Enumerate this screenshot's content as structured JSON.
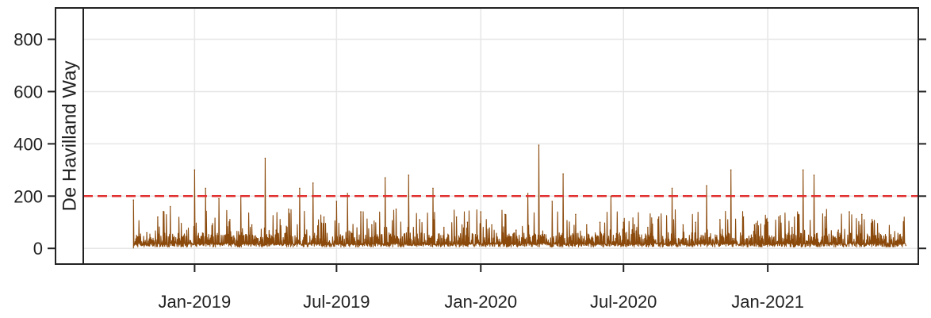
{
  "chart_data": {
    "type": "line",
    "title": "",
    "xlabel": "",
    "ylabel": "",
    "panel_label": "De Havilland Way",
    "ylim": [
      -60,
      920
    ],
    "y_ticks": [
      0,
      200,
      400,
      600,
      800
    ],
    "xlim": [
      "2018-08-12",
      "2021-07-12"
    ],
    "x_ticks": [
      {
        "date": "2019-01-01",
        "label": "Jan-2019"
      },
      {
        "date": "2019-07-01",
        "label": "Jul-2019"
      },
      {
        "date": "2020-01-01",
        "label": "Jan-2020"
      },
      {
        "date": "2020-07-01",
        "label": "Jul-2020"
      },
      {
        "date": "2021-01-01",
        "label": "Jan-2021"
      }
    ],
    "grid": true,
    "threshold": {
      "value": 200,
      "color": "#e03030",
      "style": "dashed"
    },
    "series": [
      {
        "color": "#8b4a0c",
        "x": [
          "2018-10-15",
          "2018-11-01",
          "2018-11-15",
          "2018-12-01",
          "2018-12-15",
          "2019-01-01",
          "2019-01-15",
          "2019-02-01",
          "2019-02-15",
          "2019-03-01",
          "2019-03-15",
          "2019-04-01",
          "2019-04-15",
          "2019-05-01",
          "2019-05-15",
          "2019-06-01",
          "2019-06-15",
          "2019-07-01",
          "2019-07-15",
          "2019-08-01",
          "2019-08-15",
          "2019-09-01",
          "2019-09-15",
          "2019-10-01",
          "2019-10-15",
          "2019-11-01",
          "2019-11-15",
          "2019-12-01",
          "2019-12-15",
          "2020-01-01",
          "2020-01-15",
          "2020-02-01",
          "2020-02-15",
          "2020-03-01",
          "2020-03-15",
          "2020-04-01",
          "2020-04-15",
          "2020-05-01",
          "2020-05-15",
          "2020-06-01",
          "2020-06-15",
          "2020-07-01",
          "2020-07-15",
          "2020-08-01",
          "2020-08-15",
          "2020-09-01",
          "2020-09-15",
          "2020-10-01",
          "2020-10-15",
          "2020-11-01",
          "2020-11-15",
          "2020-12-01",
          "2020-12-15",
          "2021-01-01",
          "2021-01-15",
          "2021-02-01",
          "2021-02-15",
          "2021-03-01",
          "2021-03-15",
          "2021-04-01",
          "2021-04-15",
          "2021-05-01"
        ],
        "y": [
          185,
          60,
          120,
          160,
          95,
          300,
          230,
          190,
          110,
          200,
          90,
          345,
          70,
          150,
          230,
          250,
          120,
          180,
          210,
          140,
          90,
          270,
          150,
          280,
          110,
          230,
          80,
          120,
          100,
          140,
          90,
          130,
          70,
          210,
          395,
          180,
          285,
          130,
          90,
          100,
          200,
          100,
          90,
          80,
          120,
          230,
          90,
          100,
          240,
          110,
          300,
          120,
          90,
          100,
          120,
          80,
          300,
          280,
          120,
          70,
          140,
          130
        ]
      }
    ]
  }
}
